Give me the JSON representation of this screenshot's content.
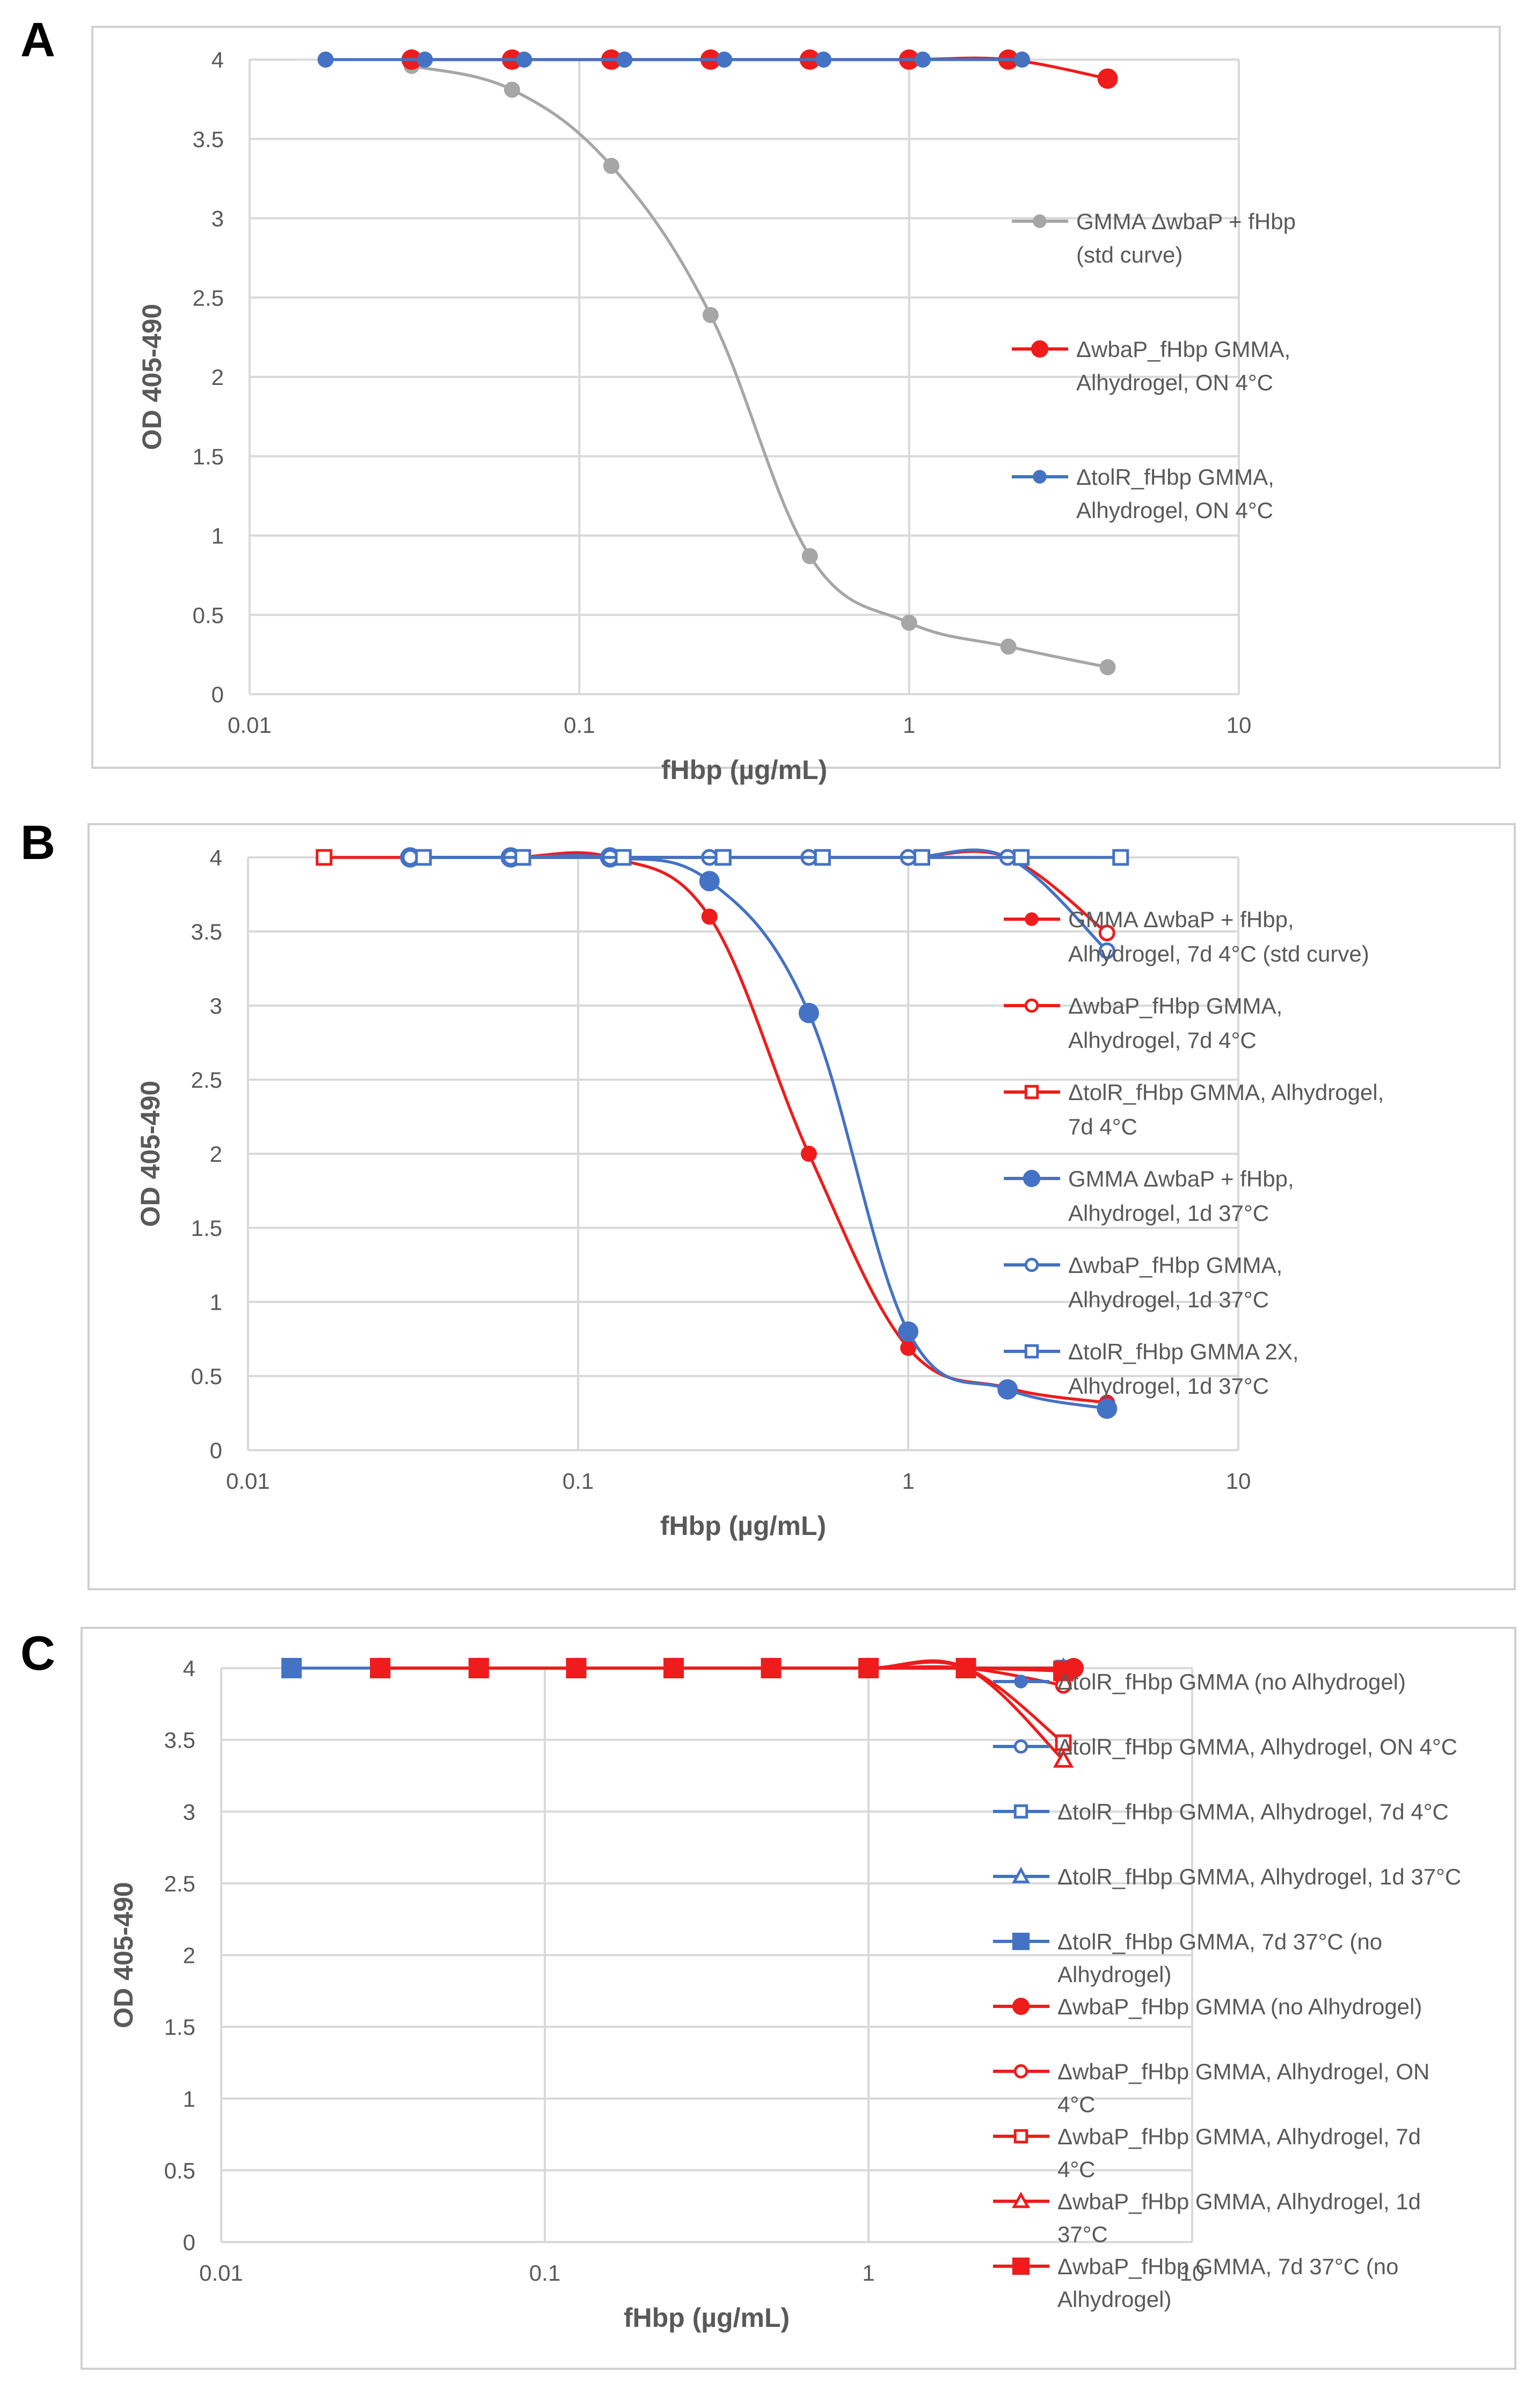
{
  "colors": {
    "red": "#ee1c1c",
    "blue": "#4472c4",
    "gray": "#a6a6a6",
    "grid": "#d9d9d9",
    "frame": "#d0d0d0"
  },
  "chart_data": [
    {
      "panel": "A",
      "type": "scatter",
      "x_scale": "log",
      "xlim": [
        0.01,
        10
      ],
      "ylim": [
        0,
        4
      ],
      "xticks": [
        "0.01",
        "0.1",
        "1",
        "10"
      ],
      "yticks": [
        "0",
        "0.5",
        "1",
        "1.5",
        "2",
        "2.5",
        "3",
        "3.5",
        "4"
      ],
      "xlabel": "fHbp (µg/mL)",
      "ylabel": "OD 405-490",
      "legend_position": "right",
      "series": [
        {
          "name": "GMMA ΔwbaP + fHbp (std curve)",
          "legend_lines": [
            "GMMA ΔwbaP + fHbp",
            "(std curve)"
          ],
          "color": "#a6a6a6",
          "marker": "filled-circle",
          "size": "small",
          "x": [
            0.031,
            0.0625,
            0.125,
            0.25,
            0.5,
            1,
            2,
            4
          ],
          "y": [
            3.96,
            3.81,
            3.33,
            2.39,
            0.87,
            0.45,
            0.3,
            0.17
          ]
        },
        {
          "name": "ΔwbaP_fHbp GMMA, Alhydrogel, ON 4°C",
          "legend_lines": [
            "ΔwbaP_fHbp GMMA,",
            "Alhydrogel, ON 4°C"
          ],
          "color": "#ee1c1c",
          "marker": "filled-circle",
          "size": "large",
          "x": [
            0.031,
            0.0625,
            0.125,
            0.25,
            0.5,
            1,
            2,
            4
          ],
          "y": [
            4,
            4,
            4,
            4,
            4,
            4,
            4,
            3.88
          ]
        },
        {
          "name": "ΔtolR_fHbp GMMA, Alhydrogel, ON 4°C",
          "legend_lines": [
            "ΔtolR_fHbp GMMA,",
            "Alhydrogel, ON 4°C"
          ],
          "color": "#4472c4",
          "marker": "filled-circle",
          "size": "small",
          "x": [
            0.017,
            0.034,
            0.068,
            0.137,
            0.275,
            0.55,
            1.1,
            2.2
          ],
          "y": [
            4,
            4,
            4,
            4,
            4,
            4,
            4,
            4
          ]
        }
      ]
    },
    {
      "panel": "B",
      "type": "scatter",
      "x_scale": "log",
      "xlim": [
        0.01,
        10
      ],
      "ylim": [
        0,
        4
      ],
      "xticks": [
        "0.01",
        "0.1",
        "1",
        "10"
      ],
      "yticks": [
        "0",
        "0.5",
        "1",
        "1.5",
        "2",
        "2.5",
        "3",
        "3.5",
        "4"
      ],
      "xlabel": "fHbp (µg/mL)",
      "ylabel": "OD 405-490",
      "legend_position": "right",
      "series": [
        {
          "name": "GMMA ΔwbaP + fHbp, Alhydrogel, 7d 4°C (std curve)",
          "legend_lines": [
            "GMMA ΔwbaP + fHbp,",
            "Alhydrogel, 7d 4°C (std curve)"
          ],
          "color": "#ee1c1c",
          "marker": "filled-circle",
          "size": "small",
          "x": [
            0.031,
            0.0625,
            0.125,
            0.25,
            0.5,
            1,
            2,
            4
          ],
          "y": [
            4,
            4,
            4,
            3.6,
            2.0,
            0.69,
            0.42,
            0.32
          ]
        },
        {
          "name": "ΔwbaP_fHbp GMMA, Alhydrogel, 7d 4°C",
          "legend_lines": [
            "ΔwbaP_fHbp GMMA,",
            "Alhydrogel, 7d 4°C"
          ],
          "color": "#ee1c1c",
          "marker": "open-circle",
          "size": "small",
          "x": [
            0.031,
            0.0625,
            0.125,
            0.25,
            0.5,
            1,
            2,
            4
          ],
          "y": [
            4,
            4,
            4,
            4,
            4,
            4,
            4,
            3.49
          ]
        },
        {
          "name": "ΔtolR_fHbp GMMA, Alhydrogel, 7d 4°C",
          "legend_lines": [
            "ΔtolR_fHbp GMMA, Alhydrogel,",
            "7d 4°C"
          ],
          "color": "#ee1c1c",
          "marker": "open-square",
          "size": "small",
          "x": [
            0.017,
            0.034,
            0.068,
            0.137,
            0.275,
            0.55,
            1.1,
            2.2
          ],
          "y": [
            4,
            4,
            4,
            4,
            4,
            4,
            4,
            4
          ]
        },
        {
          "name": "GMMA ΔwbaP + fHbp, Alhydrogel, 1d 37°C",
          "legend_lines": [
            "GMMA ΔwbaP + fHbp,",
            "Alhydrogel, 1d 37°C"
          ],
          "color": "#4472c4",
          "marker": "filled-circle",
          "size": "large",
          "x": [
            0.031,
            0.0625,
            0.125,
            0.25,
            0.5,
            1,
            2,
            4
          ],
          "y": [
            4,
            4,
            4,
            3.84,
            2.95,
            0.8,
            0.41,
            0.28
          ]
        },
        {
          "name": "ΔwbaP_fHbp GMMA, Alhydrogel, 1d 37°C",
          "legend_lines": [
            "ΔwbaP_fHbp GMMA,",
            "Alhydrogel, 1d 37°C"
          ],
          "color": "#4472c4",
          "marker": "open-circle",
          "size": "small",
          "x": [
            0.031,
            0.0625,
            0.125,
            0.25,
            0.5,
            1,
            2,
            4
          ],
          "y": [
            4,
            4,
            4,
            4,
            4,
            4,
            4,
            3.37
          ]
        },
        {
          "name": "ΔtolR_fHbp GMMA 2X, Alhydrogel, 1d 37°C",
          "legend_lines": [
            "ΔtolR_fHbp GMMA 2X,",
            "Alhydrogel, 1d 37°C"
          ],
          "color": "#4472c4",
          "marker": "open-square",
          "size": "small",
          "x": [
            0.034,
            0.068,
            0.137,
            0.275,
            0.55,
            1.1,
            2.2,
            4.4
          ],
          "y": [
            4,
            4,
            4,
            4,
            4,
            4,
            4,
            4
          ]
        }
      ]
    },
    {
      "panel": "C",
      "type": "scatter",
      "x_scale": "log",
      "xlim": [
        0.01,
        10
      ],
      "ylim": [
        0,
        4
      ],
      "xticks": [
        "0.01",
        "0.1",
        "1",
        "10"
      ],
      "yticks": [
        "0",
        "0.5",
        "1",
        "1.5",
        "2",
        "2.5",
        "3",
        "3.5",
        "4"
      ],
      "xlabel": "fHbp (µg/mL)",
      "ylabel": "OD 405-490",
      "legend_position": "right",
      "series": [
        {
          "name": "ΔtolR_fHbp GMMA (no Alhydrogel)",
          "legend_lines": [
            "ΔtolR_fHbp GMMA (no Alhydrogel)"
          ],
          "color": "#4472c4",
          "marker": "filled-circle",
          "size": "small",
          "x": [
            0.031,
            0.0625,
            0.125,
            0.25,
            0.5,
            1,
            2,
            4
          ],
          "y": [
            4,
            4,
            4,
            4,
            4,
            4,
            4,
            4
          ]
        },
        {
          "name": "ΔtolR_fHbp GMMA, Alhydrogel, ON 4°C",
          "legend_lines": [
            "ΔtolR_fHbp GMMA, Alhydrogel, ON 4°C"
          ],
          "color": "#4472c4",
          "marker": "open-circle",
          "size": "small",
          "x": [
            0.031,
            0.0625,
            0.125,
            0.25,
            0.5,
            1,
            2,
            4
          ],
          "y": [
            4,
            4,
            4,
            4,
            4,
            4,
            4,
            4
          ]
        },
        {
          "name": "ΔtolR_fHbp GMMA, Alhydrogel, 7d 4°C",
          "legend_lines": [
            "ΔtolR_fHbp GMMA, Alhydrogel, 7d 4°C"
          ],
          "color": "#4472c4",
          "marker": "open-square",
          "size": "small",
          "x": [
            0.031,
            0.0625,
            0.125,
            0.25,
            0.5,
            1,
            2,
            4
          ],
          "y": [
            4,
            4,
            4,
            4,
            4,
            4,
            4,
            4
          ]
        },
        {
          "name": "ΔtolR_fHbp GMMA, Alhydrogel, 1d 37°C",
          "legend_lines": [
            "ΔtolR_fHbp GMMA, Alhydrogel, 1d 37°C"
          ],
          "color": "#4472c4",
          "marker": "open-triangle",
          "size": "small",
          "x": [
            0.031,
            0.0625,
            0.125,
            0.25,
            0.5,
            1,
            2,
            4
          ],
          "y": [
            4,
            4,
            4,
            4,
            4,
            4,
            4,
            4
          ]
        },
        {
          "name": "ΔtolR_fHbp GMMA, 7d 37°C (no Alhydrogel)",
          "legend_lines": [
            "ΔtolR_fHbp GMMA, 7d 37°C (no",
            "Alhydrogel)"
          ],
          "color": "#4472c4",
          "marker": "filled-square",
          "size": "large",
          "x": [
            0.0165,
            0.031,
            0.0625,
            0.125,
            0.25,
            0.5,
            1,
            2
          ],
          "y": [
            4,
            4,
            4,
            4,
            4,
            4,
            4,
            4
          ]
        },
        {
          "name": "ΔwbaP_fHbp GMMA (no Alhydrogel)",
          "legend_lines": [
            "ΔwbaP_fHbp GMMA (no Alhydrogel)"
          ],
          "color": "#ee1c1c",
          "marker": "filled-circle",
          "size": "large",
          "x": [
            0.031,
            0.0625,
            0.125,
            0.25,
            0.5,
            1,
            2,
            4.3
          ],
          "y": [
            4,
            4,
            4,
            4,
            4,
            4,
            4,
            4
          ]
        },
        {
          "name": "ΔwbaP_fHbp GMMA, Alhydrogel, ON 4°C",
          "legend_lines": [
            "ΔwbaP_fHbp GMMA, Alhydrogel, ON",
            "4°C"
          ],
          "color": "#ee1c1c",
          "marker": "open-circle",
          "size": "small",
          "x": [
            0.031,
            0.0625,
            0.125,
            0.25,
            0.5,
            1,
            2,
            4
          ],
          "y": [
            4,
            4,
            4,
            4,
            4,
            4,
            4,
            3.88
          ]
        },
        {
          "name": "ΔwbaP_fHbp GMMA, Alhydrogel, 7d 4°C",
          "legend_lines": [
            "ΔwbaP_fHbp GMMA, Alhydrogel, 7d",
            "4°C"
          ],
          "color": "#ee1c1c",
          "marker": "open-square",
          "size": "small",
          "x": [
            0.031,
            0.0625,
            0.125,
            0.25,
            0.5,
            1,
            2,
            4
          ],
          "y": [
            4,
            4,
            4,
            4,
            4,
            4,
            4,
            3.48
          ]
        },
        {
          "name": "ΔwbaP_fHbp GMMA, Alhydrogel, 1d 37°C",
          "legend_lines": [
            "ΔwbaP_fHbp GMMA, Alhydrogel, 1d",
            "37°C"
          ],
          "color": "#ee1c1c",
          "marker": "open-triangle",
          "size": "small",
          "x": [
            0.031,
            0.0625,
            0.125,
            0.25,
            0.5,
            1,
            2,
            4
          ],
          "y": [
            4,
            4,
            4,
            4,
            4,
            4,
            4,
            3.36
          ]
        },
        {
          "name": "ΔwbaP_fHbp GMMA, 7d 37°C (no Alhydrogel)",
          "legend_lines": [
            "ΔwbaP_fHbp GMMA, 7d 37°C (no",
            "Alhydrogel)"
          ],
          "color": "#ee1c1c",
          "marker": "filled-square",
          "size": "large",
          "x": [
            0.031,
            0.0625,
            0.125,
            0.25,
            0.5,
            1,
            2,
            4
          ],
          "y": [
            4,
            4,
            4,
            4,
            4,
            4,
            4,
            3.98
          ]
        }
      ]
    }
  ]
}
